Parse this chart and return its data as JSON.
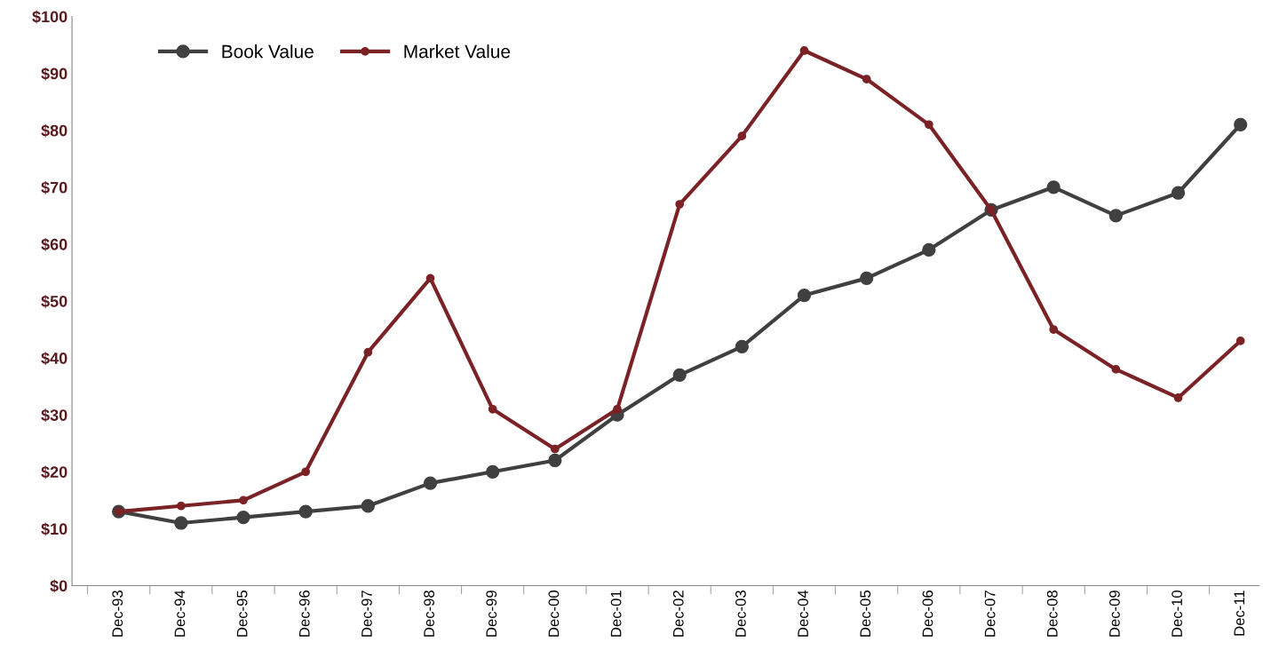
{
  "chart_data": {
    "type": "line",
    "categories": [
      "Dec-93",
      "Dec-94",
      "Dec-95",
      "Dec-96",
      "Dec-97",
      "Dec-98",
      "Dec-99",
      "Dec-00",
      "Dec-01",
      "Dec-02",
      "Dec-03",
      "Dec-04",
      "Dec-05",
      "Dec-06",
      "Dec-07",
      "Dec-08",
      "Dec-09",
      "Dec-10",
      "Dec-11"
    ],
    "series": [
      {
        "name": "Book Value",
        "color": "#404040",
        "values": [
          13,
          11,
          12,
          13,
          14,
          18,
          20,
          22,
          30,
          37,
          42,
          51,
          54,
          59,
          66,
          70,
          65,
          69,
          81
        ]
      },
      {
        "name": "Market Value",
        "color": "#7b2226",
        "values": [
          13,
          14,
          15,
          20,
          41,
          54,
          31,
          24,
          31,
          67,
          79,
          94,
          89,
          81,
          66,
          45,
          38,
          33,
          43
        ]
      }
    ],
    "ylim": [
      0,
      100
    ],
    "yticks": [
      {
        "value": 0,
        "label": "$0"
      },
      {
        "value": 10,
        "label": "$10"
      },
      {
        "value": 20,
        "label": "$20"
      },
      {
        "value": 30,
        "label": "$30"
      },
      {
        "value": 40,
        "label": "$40"
      },
      {
        "value": 50,
        "label": "$50"
      },
      {
        "value": 60,
        "label": "$60"
      },
      {
        "value": 70,
        "label": "$70"
      },
      {
        "value": 80,
        "label": "$80"
      },
      {
        "value": 90,
        "label": "$90"
      },
      {
        "value": 100,
        "label": "$100"
      }
    ],
    "grid": false,
    "legend": "top left",
    "marker": "circle",
    "line_style": "solid"
  }
}
